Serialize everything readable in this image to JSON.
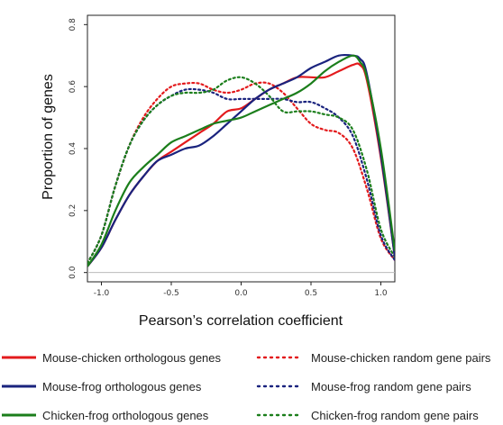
{
  "chart_data": {
    "type": "line",
    "title": "",
    "xlabel": "Pearson’s correlation coefficient",
    "ylabel": "Proportion of genes",
    "xlim": [
      -1.1,
      1.1
    ],
    "ylim": [
      -0.03,
      0.83
    ],
    "xticks": [
      -1.0,
      -0.5,
      0.0,
      0.5,
      1.0
    ],
    "xtick_labels": [
      "-1.0",
      "-0.5",
      "0.0",
      "0.5",
      "1.0"
    ],
    "yticks": [
      0.0,
      0.2,
      0.4,
      0.6,
      0.8
    ],
    "ytick_labels": [
      "0.0",
      "0.2",
      "0.4",
      "0.6",
      "0.8"
    ],
    "grid": false,
    "reference_line_y": 0,
    "legend_position": "bottom",
    "series": [
      {
        "name": "Mouse-chicken orthologous genes",
        "color": "#e31a1c",
        "style": "solid",
        "x": [
          -1.1,
          -1.0,
          -0.9,
          -0.8,
          -0.7,
          -0.6,
          -0.5,
          -0.4,
          -0.3,
          -0.2,
          -0.1,
          0.0,
          0.1,
          0.2,
          0.3,
          0.4,
          0.5,
          0.6,
          0.7,
          0.8,
          0.85,
          0.9,
          1.0,
          1.1
        ],
        "y": [
          0.02,
          0.08,
          0.17,
          0.25,
          0.31,
          0.36,
          0.39,
          0.42,
          0.45,
          0.48,
          0.52,
          0.53,
          0.56,
          0.59,
          0.61,
          0.63,
          0.63,
          0.63,
          0.65,
          0.67,
          0.67,
          0.62,
          0.37,
          0.05
        ]
      },
      {
        "name": "Mouse-frog orthologous genes",
        "color": "#1a237e",
        "style": "solid",
        "x": [
          -1.1,
          -1.0,
          -0.9,
          -0.8,
          -0.7,
          -0.6,
          -0.5,
          -0.4,
          -0.3,
          -0.2,
          -0.1,
          0.0,
          0.1,
          0.2,
          0.3,
          0.4,
          0.5,
          0.6,
          0.7,
          0.8,
          0.85,
          0.9,
          1.0,
          1.1
        ],
        "y": [
          0.02,
          0.08,
          0.17,
          0.25,
          0.31,
          0.36,
          0.38,
          0.4,
          0.41,
          0.44,
          0.48,
          0.52,
          0.56,
          0.59,
          0.61,
          0.63,
          0.66,
          0.68,
          0.7,
          0.7,
          0.69,
          0.64,
          0.38,
          0.05
        ]
      },
      {
        "name": "Chicken-frog orthologous genes",
        "color": "#1b7e1b",
        "style": "solid",
        "x": [
          -1.1,
          -1.0,
          -0.9,
          -0.8,
          -0.7,
          -0.6,
          -0.5,
          -0.4,
          -0.3,
          -0.2,
          -0.1,
          0.0,
          0.1,
          0.2,
          0.3,
          0.4,
          0.5,
          0.6,
          0.7,
          0.8,
          0.85,
          0.9,
          1.0,
          1.1
        ],
        "y": [
          0.02,
          0.09,
          0.2,
          0.29,
          0.34,
          0.38,
          0.42,
          0.44,
          0.46,
          0.48,
          0.49,
          0.5,
          0.52,
          0.54,
          0.56,
          0.58,
          0.61,
          0.65,
          0.68,
          0.7,
          0.68,
          0.63,
          0.4,
          0.07
        ]
      },
      {
        "name": "Mouse-chicken random gene pairs",
        "color": "#e31a1c",
        "style": "dotted",
        "x": [
          -1.1,
          -1.0,
          -0.9,
          -0.8,
          -0.7,
          -0.6,
          -0.5,
          -0.4,
          -0.3,
          -0.2,
          -0.1,
          0.0,
          0.1,
          0.2,
          0.3,
          0.4,
          0.5,
          0.6,
          0.7,
          0.8,
          0.9,
          1.0,
          1.1
        ],
        "y": [
          0.03,
          0.12,
          0.28,
          0.41,
          0.5,
          0.56,
          0.6,
          0.61,
          0.61,
          0.59,
          0.58,
          0.59,
          0.61,
          0.61,
          0.58,
          0.53,
          0.48,
          0.46,
          0.45,
          0.4,
          0.27,
          0.11,
          0.04
        ]
      },
      {
        "name": "Mouse-frog random gene pairs",
        "color": "#1a237e",
        "style": "dotted",
        "x": [
          -1.1,
          -1.0,
          -0.9,
          -0.8,
          -0.7,
          -0.6,
          -0.5,
          -0.4,
          -0.3,
          -0.2,
          -0.1,
          0.0,
          0.1,
          0.2,
          0.3,
          0.4,
          0.5,
          0.6,
          0.7,
          0.8,
          0.9,
          1.0,
          1.1
        ],
        "y": [
          0.03,
          0.12,
          0.28,
          0.41,
          0.49,
          0.54,
          0.57,
          0.59,
          0.59,
          0.58,
          0.56,
          0.56,
          0.56,
          0.56,
          0.56,
          0.55,
          0.55,
          0.53,
          0.5,
          0.44,
          0.3,
          0.12,
          0.04
        ]
      },
      {
        "name": "Chicken-frog random gene pairs",
        "color": "#1b7e1b",
        "style": "dotted",
        "x": [
          -1.1,
          -1.0,
          -0.9,
          -0.8,
          -0.7,
          -0.6,
          -0.5,
          -0.4,
          -0.3,
          -0.2,
          -0.1,
          0.0,
          0.1,
          0.2,
          0.3,
          0.4,
          0.5,
          0.6,
          0.7,
          0.8,
          0.9,
          1.0,
          1.1
        ],
        "y": [
          0.03,
          0.12,
          0.28,
          0.41,
          0.49,
          0.54,
          0.57,
          0.58,
          0.58,
          0.59,
          0.62,
          0.63,
          0.61,
          0.57,
          0.52,
          0.52,
          0.52,
          0.51,
          0.5,
          0.46,
          0.33,
          0.14,
          0.05
        ]
      }
    ]
  }
}
